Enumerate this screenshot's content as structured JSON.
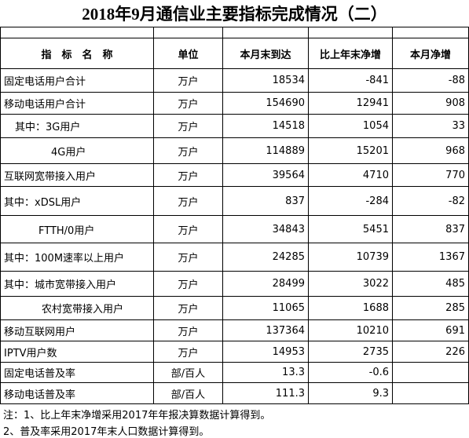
{
  "header": {
    "title": "2018年9月通信业主要指标完成情况（二）"
  },
  "table": {
    "columns": [
      "指　标　名　称",
      "单位",
      "本月末到达",
      "比上年末净增",
      "本月净增"
    ],
    "rows": [
      [
        "固定电话用户合计",
        "万户",
        "18534",
        "-841",
        "-88"
      ],
      [
        "移动电话用户合计",
        "万户",
        "154690",
        "12941",
        "908"
      ],
      [
        "其中：3G用户",
        "万户",
        "14518",
        "1054",
        "33"
      ],
      [
        "4G用户",
        "万户",
        "114889",
        "15201",
        "968"
      ],
      [
        "互联网宽带接入用户",
        "万户",
        "39564",
        "4710",
        "770"
      ],
      [
        "其中：xDSL用户",
        "万户",
        "837",
        "-284",
        "-82"
      ],
      [
        "FTTH/0用户",
        "万户",
        "34843",
        "5451",
        "837"
      ],
      [
        "其中：100M速率以上用户",
        "万户",
        "24285",
        "10739",
        "1367"
      ],
      [
        "其中：城市宽带接入用户",
        "万户",
        "28499",
        "3022",
        "485"
      ],
      [
        "农村宽带接入用户",
        "万户",
        "11065",
        "1688",
        "285"
      ],
      [
        "移动互联网用户",
        "万户",
        "137364",
        "10210",
        "691"
      ],
      [
        "IPTV用户数",
        "万户",
        "14953",
        "2735",
        "226"
      ],
      [
        "固定电话普及率",
        "部/百人",
        "13.3",
        "-0.6",
        ""
      ],
      [
        "移动电话普及率",
        "部/百人",
        "111.3",
        "9.3",
        ""
      ]
    ]
  },
  "notes": [
    "注：1、比上年末净增采用2017年年报决算数据计算得到。",
    "2、普及率采用2017年末人口数据计算得到。"
  ]
}
